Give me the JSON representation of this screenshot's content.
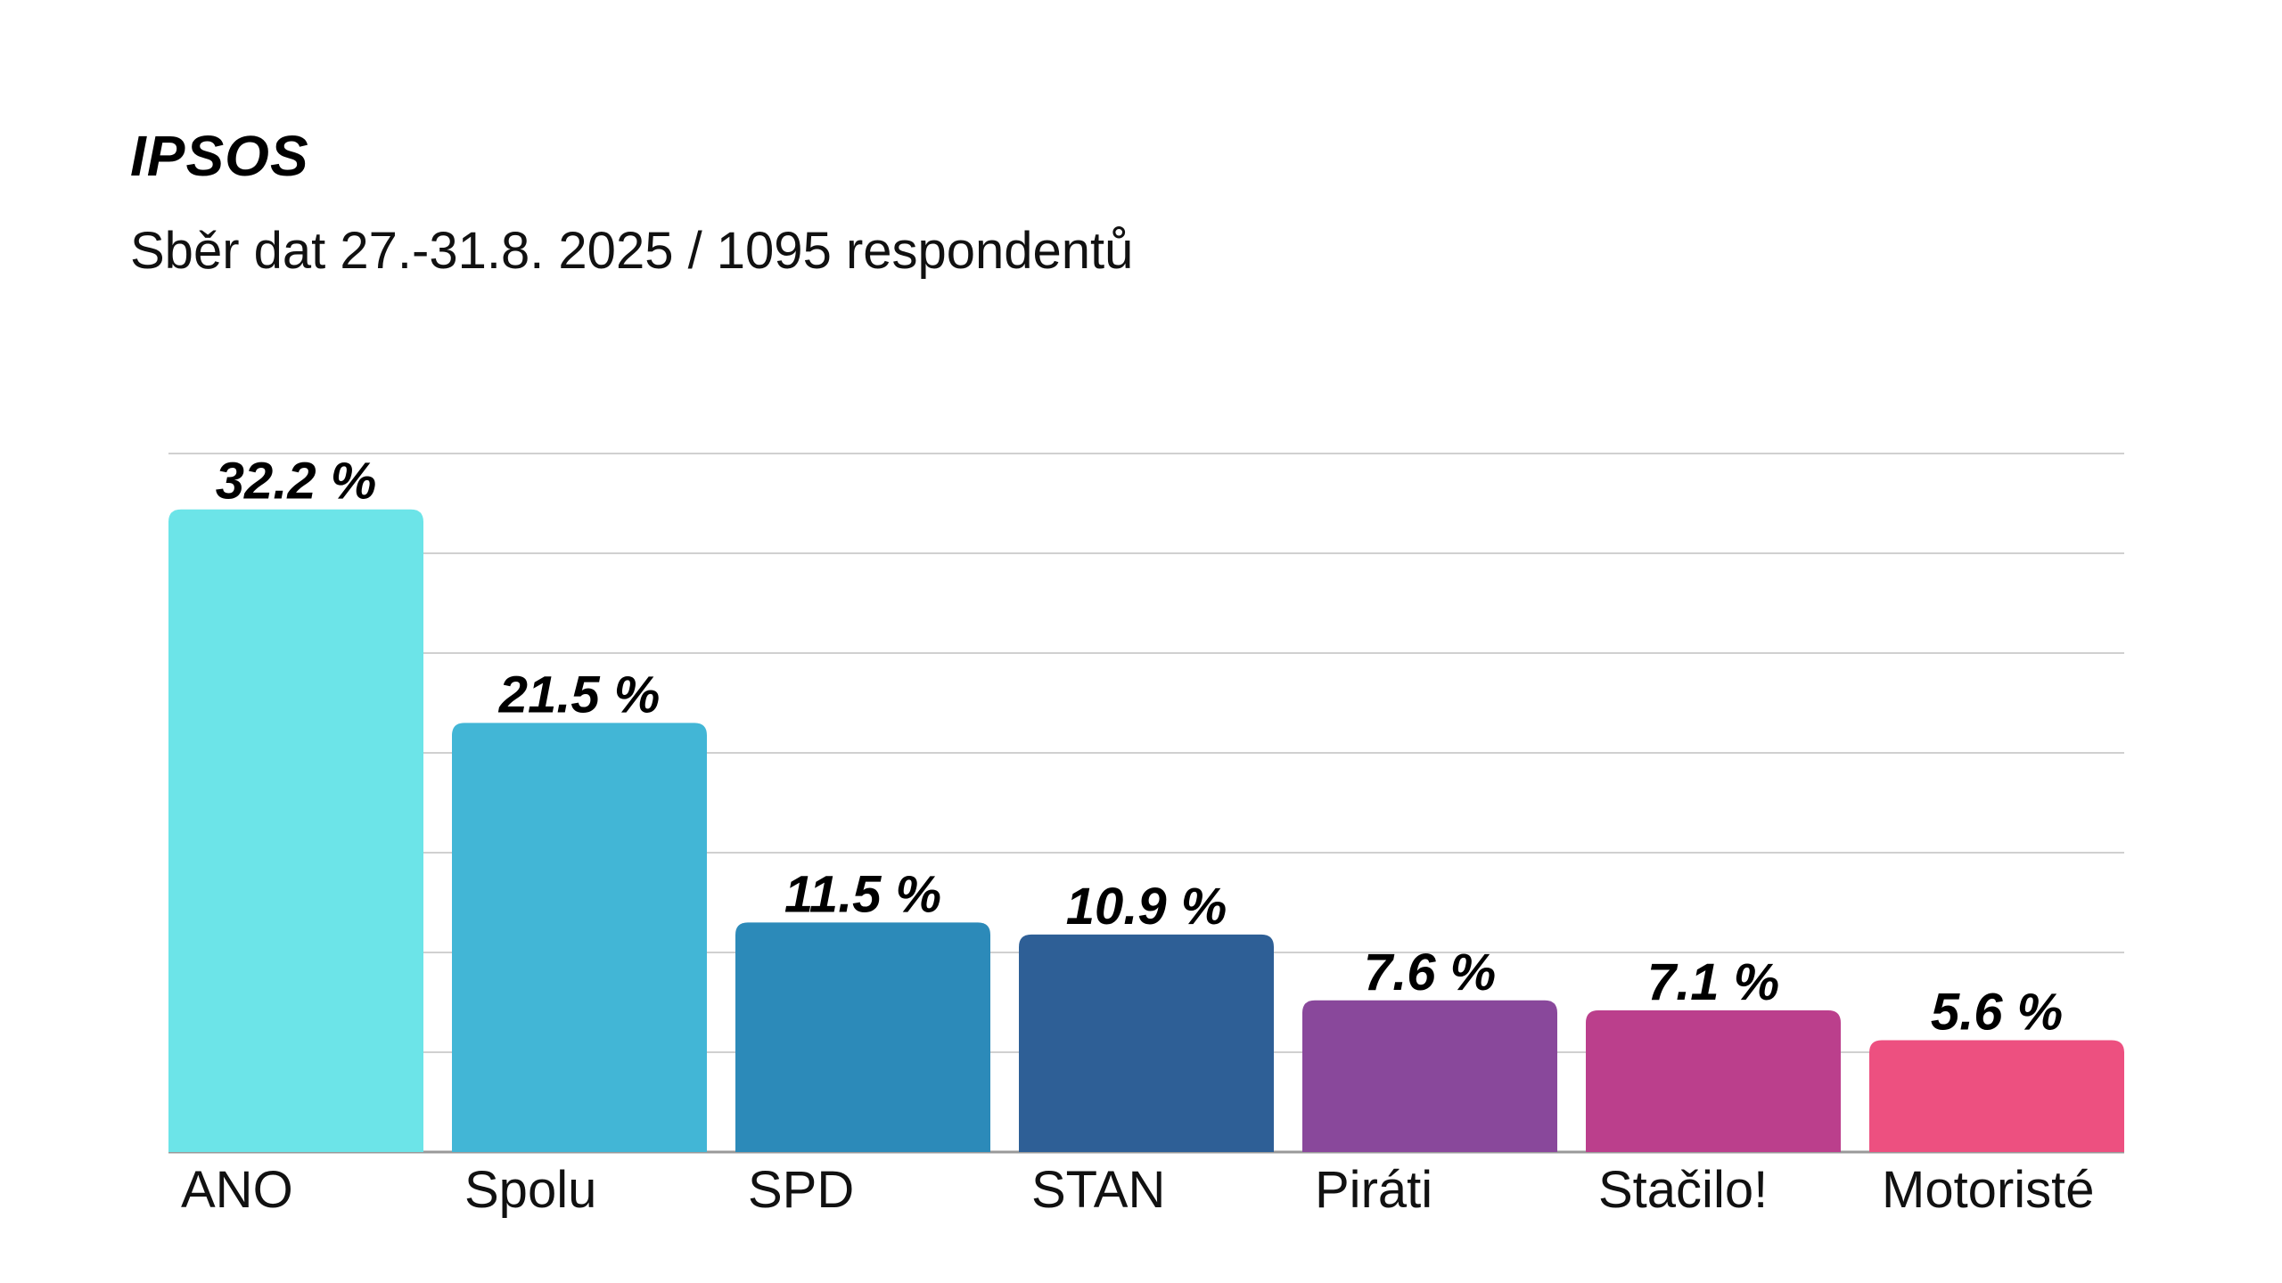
{
  "chart_data": {
    "type": "bar",
    "title": "IPSOS",
    "subtitle": "Sběr dat 27.-31.8. 2025 / 1095 respondentů",
    "xlabel": "",
    "ylabel": "",
    "ylim": [
      0,
      35
    ],
    "grid": true,
    "grid_step": 5,
    "categories": [
      "ANO",
      "Spolu",
      "SPD",
      "STAN",
      "Piráti",
      "Stačilo!",
      "Motoristé"
    ],
    "values": [
      32.2,
      21.5,
      11.5,
      10.9,
      7.6,
      7.1,
      5.6
    ],
    "value_labels": [
      "32.2 %",
      "21.5 %",
      "11.5 %",
      "10.9 %",
      "7.6 %",
      "7.1 %",
      "5.6 %"
    ],
    "colors": [
      "#6ce4e8",
      "#42b6d6",
      "#2c8ab9",
      "#2e5f96",
      "#89489b",
      "#bb3f8c",
      "#ed5080"
    ]
  }
}
